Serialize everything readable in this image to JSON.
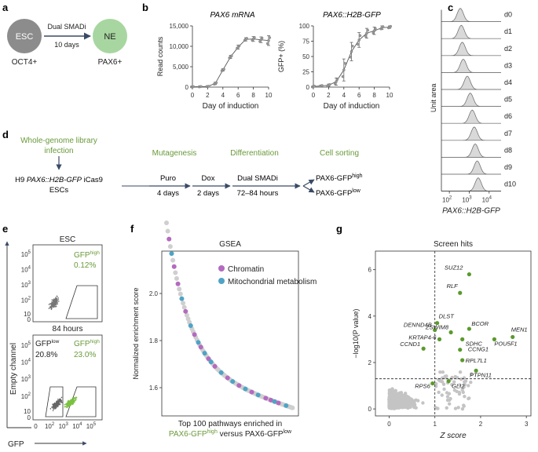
{
  "panel_labels": {
    "a": "a",
    "b": "b",
    "c": "c",
    "d": "d",
    "e": "e",
    "f": "f",
    "g": "g"
  },
  "panel_a": {
    "left_node": "ESC",
    "left_marker": "OCT4+",
    "right_node": "NE",
    "right_marker": "PAX6+",
    "arrow_top": "Dual SMADi",
    "arrow_bottom": "10 days",
    "colors": {
      "esc": "#8c8c8c",
      "ne": "#a8d6a0"
    }
  },
  "panel_d": {
    "infection_line1": "Whole-genome library",
    "infection_line2": "infection",
    "cells_prefix": "H9 ",
    "cells_italic": "PAX6::H2B-GFP",
    "cells_suffix": " iCas9",
    "cells_line2": "ESCs",
    "stage_mutagenesis": "Mutagenesis",
    "stage_differentiation": "Differentiation",
    "stage_sorting": "Cell sorting",
    "step1_top": "Puro",
    "step1_bottom": "4 days",
    "step2_top": "Dox",
    "step2_bottom": "2 days",
    "step3_top": "Dual SMADi",
    "step3_bottom": "72–84 hours",
    "out_high": "PAX6-GFP",
    "out_high_sup": "high",
    "out_low": "PAX6-GFP",
    "out_low_sup": "low"
  },
  "panel_e": {
    "y_title": "Empty channel",
    "x_title": "GFP",
    "top_title": "ESC",
    "top_gate_label": "GFP",
    "top_gate_sup": "high",
    "top_gate_pct": "0.12%",
    "bottom_title": "84 hours",
    "low_label": "GFP",
    "low_sup": "low",
    "low_pct": "20.8%",
    "high_label": "GFP",
    "high_sup": "high",
    "high_pct": "23.0%",
    "y_ticks": [
      "10",
      "10",
      "10",
      "10",
      "10",
      "0"
    ],
    "y_tick_exps": [
      "5",
      "4",
      "3",
      "2",
      "",
      ""
    ],
    "x_ticks": [
      "0",
      "10",
      "10",
      "10",
      "10"
    ],
    "x_tick_exps": [
      "",
      "2",
      "3",
      "4",
      "5"
    ]
  },
  "chart_data": [
    {
      "type": "line",
      "title": "PAX6 mRNA",
      "xlabel": "Day of induction",
      "ylabel": "Read counts",
      "x": [
        0,
        1,
        2,
        3,
        4,
        5,
        6,
        7,
        8,
        9,
        10
      ],
      "values": [
        80,
        100,
        150,
        900,
        4200,
        7400,
        9800,
        11700,
        11800,
        11600,
        11400
      ],
      "errors": [
        40,
        50,
        60,
        300,
        300,
        400,
        500,
        400,
        600,
        700,
        1200
      ],
      "ylim": [
        0,
        15000
      ],
      "yticks": [
        "0",
        "5,000",
        "10,000",
        "15,000"
      ],
      "xticks": [
        "0",
        "2",
        "4",
        "6",
        "8",
        "10"
      ]
    },
    {
      "type": "line",
      "title": "PAX6::H2B-GFP",
      "xlabel": "Day of induction",
      "ylabel": "GFP+ (%)",
      "x": [
        0,
        1,
        2,
        3,
        4,
        5,
        6,
        7,
        8,
        9,
        10
      ],
      "values": [
        1,
        2,
        3,
        9,
        28,
        58,
        77,
        88,
        92,
        97,
        98
      ],
      "errors": [
        1,
        1,
        2,
        6,
        18,
        15,
        12,
        8,
        6,
        3,
        2
      ],
      "ylim": [
        0,
        100
      ],
      "yticks": [
        "0",
        "25",
        "50",
        "75",
        "100"
      ],
      "xticks": [
        "0",
        "2",
        "4",
        "6",
        "8",
        "10"
      ]
    },
    {
      "type": "area",
      "title": "PAX6::H2B-GFP histograms",
      "xlabel": "PAX6::H2B-GFP",
      "ylabel": "Unit area",
      "series": [
        "d0",
        "d1",
        "d2",
        "d3",
        "d4",
        "d5",
        "d6",
        "d7",
        "d8",
        "d9",
        "d10"
      ],
      "peaks_log10": [
        2.55,
        2.6,
        2.65,
        2.7,
        2.9,
        3.05,
        3.15,
        3.25,
        3.3,
        3.4,
        3.45
      ],
      "xticks": [
        "10",
        "10",
        "10"
      ],
      "xtick_exps": [
        "2",
        "3",
        "4"
      ]
    },
    {
      "type": "scatter",
      "title": "GSEA",
      "xlabel_line1": "Top 100 pathways enriched in",
      "xlabel_high": "PAX6-GFP",
      "xlabel_high_sup": "high",
      "xlabel_mid": " versus ",
      "xlabel_low": "PAX6-GFP",
      "xlabel_low_sup": "low",
      "ylabel": "Normalized enrichment score",
      "ylim": [
        1.48,
        2.18
      ],
      "yticks": [
        "1.6",
        "1.8",
        "2.0"
      ],
      "legend": [
        {
          "name": "Chromatin",
          "color": "#b36bbf"
        },
        {
          "name": "Mitochondrial metabolism",
          "color": "#4fa3c6"
        }
      ],
      "chromatin_ranks": [
        2,
        6,
        9,
        15,
        22,
        27,
        33,
        38,
        48,
        57,
        67,
        78,
        82,
        88
      ],
      "mito_ranks": [
        4,
        12,
        19,
        25,
        30,
        35,
        43,
        52,
        62,
        72,
        85,
        94
      ]
    },
    {
      "type": "scatter",
      "title": "Screen hits",
      "xlabel": "Z score",
      "ylabel": "−log10(P value)",
      "xlim": [
        -0.3,
        3.1
      ],
      "ylim": [
        -0.3,
        6.8
      ],
      "xticks": [
        "0",
        "1",
        "2",
        "3"
      ],
      "yticks": [
        "0",
        "2",
        "4",
        "6"
      ],
      "x_threshold": 1,
      "y_threshold": 1.3,
      "hits": [
        {
          "name": "SUZ12",
          "x": 1.75,
          "y": 5.8
        },
        {
          "name": "RLF",
          "x": 1.55,
          "y": 5.0
        },
        {
          "name": "DLST",
          "x": 1.05,
          "y": 3.7
        },
        {
          "name": "BCOR",
          "x": 1.75,
          "y": 3.45
        },
        {
          "name": "DENND4B",
          "x": 1.0,
          "y": 3.4
        },
        {
          "name": "ZSWIM8",
          "x": 1.35,
          "y": 3.3
        },
        {
          "name": "MEN1",
          "x": 2.7,
          "y": 3.1
        },
        {
          "name": "POU5F1",
          "x": 2.3,
          "y": 3.0
        },
        {
          "name": "SDHC",
          "x": 1.6,
          "y": 3.0
        },
        {
          "name": "KRTAP4-6",
          "x": 1.1,
          "y": 3.0
        },
        {
          "name": "CCNG1",
          "x": 1.55,
          "y": 2.55
        },
        {
          "name": "CCND1",
          "x": 0.75,
          "y": 2.6
        },
        {
          "name": "RPL7L1",
          "x": 1.6,
          "y": 2.1
        },
        {
          "name": "PTPN11",
          "x": 1.9,
          "y": 1.65
        },
        {
          "name": "RPS6",
          "x": 0.95,
          "y": 1.1
        },
        {
          "name": "GLI2",
          "x": 1.3,
          "y": 1.2
        }
      ]
    }
  ]
}
